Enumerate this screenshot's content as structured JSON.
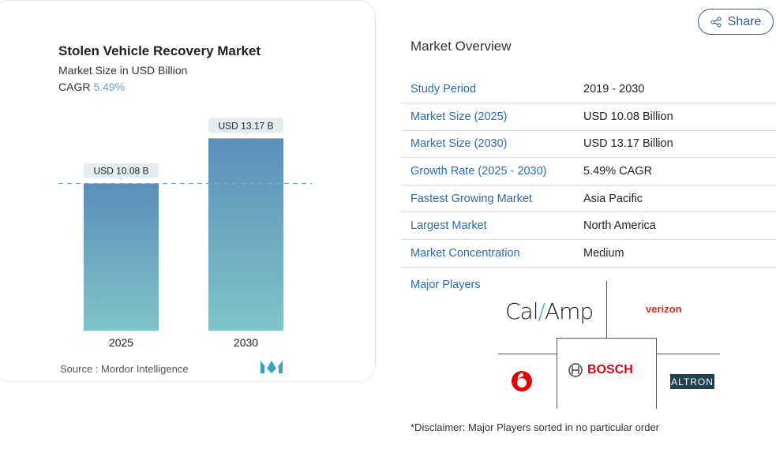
{
  "share": {
    "label": "Share",
    "icon": "share-icon"
  },
  "chart_data": {
    "type": "bar",
    "title": "Stolen Vehicle Recovery Market",
    "subtitle": "Market Size in USD Billion",
    "cagr_label": "CAGR",
    "cagr_value": "5.49%",
    "categories": [
      "2025",
      "2030"
    ],
    "values": [
      10.08,
      13.17
    ],
    "data_labels": [
      "USD 10.08 B",
      "USD 13.17 B"
    ],
    "ylim": [
      0,
      13.5
    ],
    "source": "Source :  Mordor Intelligence",
    "colors": {
      "bar_top": "#5b8fba",
      "bar_bottom": "#80c4c8",
      "cagr": "#6a9fcf"
    }
  },
  "overview": {
    "title": "Market Overview",
    "rows": [
      {
        "k": "Study Period",
        "v": "2019 - 2030"
      },
      {
        "k": "Market Size (2025)",
        "v": "USD 10.08 Billion"
      },
      {
        "k": "Market Size (2030)",
        "v": "USD 13.17 Billion"
      },
      {
        "k": "Growth Rate (2025 - 2030)",
        "v": "5.49% CAGR"
      },
      {
        "k": "Fastest Growing Market",
        "v": "Asia Pacific"
      },
      {
        "k": "Largest Market",
        "v": "North America"
      },
      {
        "k": "Market Concentration",
        "v": "Medium"
      }
    ],
    "major_players_label": "Major Players",
    "players": [
      "CalAmp",
      "verizon",
      "Vodafone",
      "BOSCH",
      "ALTRON"
    ],
    "disclaimer": "*Disclaimer: Major Players sorted in no particular order"
  }
}
